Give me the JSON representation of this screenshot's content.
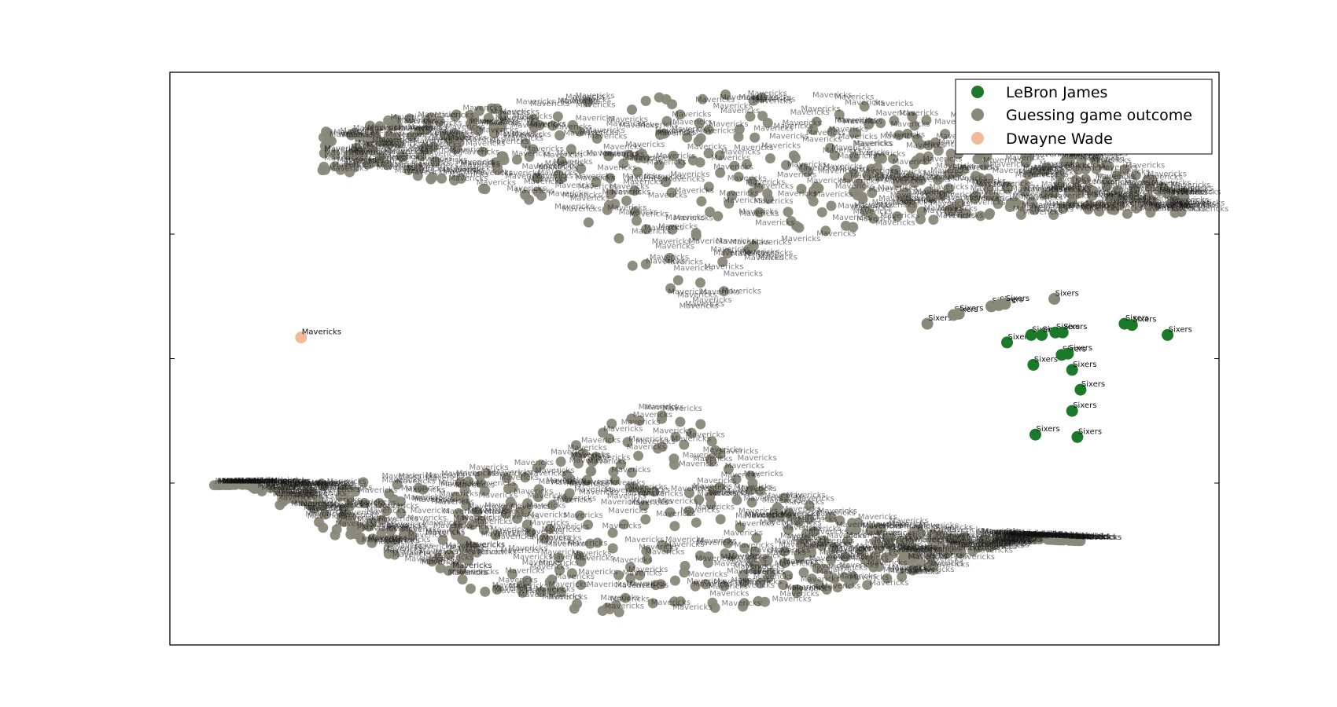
{
  "chart_data": {
    "type": "scatter",
    "title": "",
    "xlabel": "",
    "ylabel": "",
    "xlim": [
      0,
      100
    ],
    "ylim": [
      -2.3,
      2.3
    ],
    "y_ticks": [
      -1,
      0,
      1
    ],
    "grid": false,
    "legend": {
      "placement": "top-right",
      "entries": [
        {
          "name": "LeBron James",
          "color": "#1a7a2a"
        },
        {
          "name": "Guessing game outcome",
          "color": "#88897a"
        },
        {
          "name": "Dwayne Wade",
          "color": "#f2b99a"
        }
      ]
    },
    "series": [
      {
        "name": "LeBron James",
        "color": "#1a7a2a",
        "points": [
          {
            "x": 79.8,
            "y": 0.13,
            "label": "Sixers"
          },
          {
            "x": 82.1,
            "y": 0.19,
            "label": "Sixers"
          },
          {
            "x": 83.1,
            "y": 0.19,
            "label": "Sixers"
          },
          {
            "x": 84.4,
            "y": 0.21,
            "label": "Sixers"
          },
          {
            "x": 85.1,
            "y": 0.21,
            "label": "Sixers"
          },
          {
            "x": 91.0,
            "y": 0.28,
            "label": "Sixers"
          },
          {
            "x": 91.7,
            "y": 0.27,
            "label": "Sixers"
          },
          {
            "x": 95.1,
            "y": 0.19,
            "label": "Sixers"
          },
          {
            "x": 85.0,
            "y": 0.03,
            "label": "Sixers"
          },
          {
            "x": 85.6,
            "y": 0.04,
            "label": "Sixers"
          },
          {
            "x": 82.3,
            "y": -0.05,
            "label": "Sixers"
          },
          {
            "x": 86.0,
            "y": -0.09,
            "label": "Sixers"
          },
          {
            "x": 86.8,
            "y": -0.25,
            "label": "Sixers"
          },
          {
            "x": 86.0,
            "y": -0.42,
            "label": "Sixers"
          },
          {
            "x": 82.5,
            "y": -0.61,
            "label": "Sixers"
          },
          {
            "x": 86.5,
            "y": -0.63,
            "label": "Sixers"
          }
        ]
      },
      {
        "name": "Guessing game outcome",
        "color": "#88897a",
        "points": [
          {
            "x": 72.2,
            "y": 0.28,
            "label": "Sixers"
          },
          {
            "x": 74.7,
            "y": 0.35,
            "label": "Sixers"
          },
          {
            "x": 75.2,
            "y": 0.36,
            "label": "Sixers"
          },
          {
            "x": 78.3,
            "y": 0.42,
            "label": "Sixers"
          },
          {
            "x": 79.0,
            "y": 0.43,
            "label": "Sixers"
          },
          {
            "x": 79.6,
            "y": 0.44,
            "label": "Sixers"
          },
          {
            "x": 84.3,
            "y": 0.48,
            "label": "Sixers"
          }
        ],
        "clusters": [
          {
            "shape": "upper-crescent",
            "point_label": "Mavericks",
            "count": 460
          },
          {
            "shape": "lower-crescent",
            "point_label": "Mavericks",
            "count": 520
          }
        ]
      },
      {
        "name": "Dwayne Wade",
        "color": "#f2b99a",
        "points": [
          {
            "x": 12.5,
            "y": 0.17,
            "label": "Mavericks"
          }
        ]
      }
    ]
  }
}
